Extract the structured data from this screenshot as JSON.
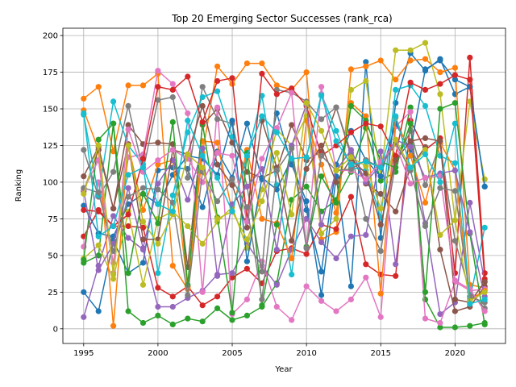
{
  "chart_data": {
    "type": "line",
    "title": "Top 20 Emerging Sector Successes (rank_rca)",
    "xlabel": "Year",
    "ylabel": "Ranking",
    "xlim": [
      1993.6,
      2023.4
    ],
    "ylim": [
      -10,
      205
    ],
    "xticks": [
      1995,
      2000,
      2005,
      2010,
      2015,
      2020
    ],
    "yticks": [
      0,
      25,
      50,
      75,
      100,
      125,
      150,
      175,
      200
    ],
    "grid": true,
    "legend": "none",
    "x": [
      1995,
      1996,
      1997,
      1998,
      1999,
      2000,
      2001,
      2002,
      2003,
      2004,
      2005,
      2006,
      2007,
      2008,
      2009,
      2010,
      2011,
      2012,
      2013,
      2014,
      2015,
      2016,
      2017,
      2018,
      2019,
      2020,
      2021,
      2022
    ],
    "series": [
      {
        "color": "#1f77b4",
        "values": [
          25,
          12,
          60,
          38,
          45,
          108,
          110,
          109,
          83,
          121,
          103,
          140,
          102,
          147,
          112,
          87,
          23,
          104,
          29,
          182,
          62,
          154,
          188,
          176,
          184,
          160,
          165,
          97
        ]
      },
      {
        "color": "#ff7f0e",
        "values": [
          157,
          165,
          121,
          166,
          166,
          174,
          43,
          27,
          120,
          179,
          167,
          181,
          181,
          166,
          163,
          175,
          61,
          66,
          177,
          179,
          183,
          170,
          183,
          184,
          175,
          178,
          30,
          28
        ]
      },
      {
        "color": "#2ca02c",
        "values": [
          45,
          50,
          140,
          12,
          4,
          9,
          3,
          7,
          5,
          14,
          6,
          9,
          15,
          31,
          88,
          97,
          80,
          88,
          107,
          137,
          101,
          107,
          151,
          20,
          1,
          1,
          2,
          4
        ]
      },
      {
        "color": "#d62728",
        "values": [
          63,
          81,
          70,
          70,
          69,
          28,
          22,
          29,
          16,
          22,
          35,
          41,
          31,
          53,
          55,
          51,
          71,
          68,
          90,
          44,
          37,
          36,
          142,
          122,
          130,
          38,
          185,
          38
        ]
      },
      {
        "color": "#9467bd",
        "values": [
          8,
          43,
          77,
          62,
          54,
          15,
          15,
          21,
          26,
          37,
          38,
          58,
          43,
          30,
          54,
          75,
          59,
          48,
          63,
          64,
          121,
          44,
          126,
          72,
          10,
          18,
          86,
          32
        ]
      },
      {
        "color": "#8c564b",
        "values": [
          104,
          124,
          82,
          139,
          126,
          127,
          126,
          42,
          139,
          150,
          127,
          107,
          103,
          108,
          139,
          115,
          121,
          151,
          118,
          99,
          92,
          80,
          110,
          124,
          54,
          12,
          15,
          29
        ]
      },
      {
        "color": "#e377c2",
        "values": [
          56,
          100,
          45,
          117,
          119,
          176,
          167,
          147,
          25,
          151,
          10,
          20,
          46,
          15,
          6,
          29,
          19,
          12,
          20,
          35,
          8,
          138,
          148,
          7,
          4,
          32,
          26,
          27
        ]
      },
      {
        "color": "#7f7f7f",
        "values": [
          122,
          90,
          107,
          152,
          108,
          156,
          158,
          103,
          165,
          143,
          140,
          97,
          39,
          163,
          161,
          155,
          143,
          151,
          120,
          75,
          53,
          113,
          135,
          98,
          126,
          60,
          25,
          14
        ]
      },
      {
        "color": "#bcbd22",
        "values": [
          48,
          57,
          34,
          80,
          30,
          75,
          80,
          70,
          58,
          73,
          83,
          55,
          95,
          136,
          125,
          145,
          65,
          75,
          163,
          169,
          104,
          190,
          190,
          195,
          160,
          74,
          155,
          102
        ]
      },
      {
        "color": "#17becf",
        "values": [
          146,
          91,
          155,
          125,
          112,
          38,
          91,
          134,
          158,
          162,
          131,
          117,
          159,
          98,
          37,
          117,
          160,
          135,
          110,
          108,
          76,
          163,
          166,
          152,
          118,
          113,
          20,
          69
        ]
      },
      {
        "color": "#1f77b4",
        "values": [
          84,
          65,
          63,
          85,
          92,
          85,
          105,
          118,
          116,
          105,
          142,
          46,
          103,
          95,
          116,
          81,
          39,
          112,
          135,
          115,
          104,
          140,
          122,
          177,
          183,
          170,
          165,
          97
        ]
      },
      {
        "color": "#ff7f0e",
        "values": [
          149,
          122,
          2,
          125,
          81,
          112,
          115,
          28,
          128,
          127,
          80,
          122,
          75,
          72,
          48,
          142,
          112,
          79,
          154,
          145,
          24,
          144,
          118,
          86,
          127,
          108,
          20,
          26
        ]
      },
      {
        "color": "#2ca02c",
        "values": [
          47,
          129,
          140,
          38,
          92,
          72,
          141,
          30,
          140,
          76,
          11,
          120,
          16,
          71,
          125,
          56,
          104,
          86,
          152,
          142,
          114,
          110,
          140,
          25,
          150,
          154,
          65,
          3
        ]
      },
      {
        "color": "#d62728",
        "values": [
          81,
          80,
          70,
          78,
          116,
          165,
          163,
          172,
          141,
          169,
          171,
          74,
          174,
          160,
          164,
          152,
          118,
          125,
          134,
          140,
          138,
          118,
          168,
          163,
          167,
          173,
          170,
          34
        ]
      },
      {
        "color": "#9467bd",
        "values": [
          94,
          40,
          58,
          96,
          55,
          99,
          115,
          88,
          123,
          36,
          85,
          97,
          109,
          54,
          125,
          153,
          71,
          108,
          122,
          100,
          112,
          129,
          124,
          103,
          106,
          108,
          66,
          22
        ]
      },
      {
        "color": "#8c564b",
        "values": [
          94,
          122,
          82,
          126,
          61,
          61,
          122,
          119,
          152,
          112,
          98,
          69,
          142,
          110,
          60,
          109,
          125,
          100,
          116,
          106,
          71,
          115,
          128,
          130,
          128,
          20,
          18,
          32
        ]
      },
      {
        "color": "#e377c2",
        "values": [
          95,
          115,
          38,
          136,
          107,
          115,
          122,
          116,
          100,
          120,
          118,
          73,
          116,
          137,
          161,
          55,
          165,
          108,
          108,
          102,
          114,
          126,
          99,
          103,
          104,
          33,
          27,
          12
        ]
      },
      {
        "color": "#7f7f7f",
        "values": [
          96,
          93,
          53,
          90,
          96,
          95,
          86,
          23,
          107,
          87,
          102,
          83,
          20,
          108,
          123,
          55,
          118,
          108,
          109,
          115,
          110,
          127,
          108,
          70,
          96,
          94,
          22,
          18
        ]
      },
      {
        "color": "#bcbd22",
        "values": [
          92,
          125,
          37,
          125,
          73,
          58,
          78,
          119,
          110,
          75,
          80,
          61,
          87,
          120,
          78,
          154,
          135,
          108,
          117,
          111,
          82,
          129,
          110,
          122,
          64,
          74,
          19,
          25
        ]
      },
      {
        "color": "#17becf",
        "values": [
          147,
          63,
          70,
          105,
          110,
          85,
          80,
          142,
          118,
          103,
          80,
          118,
          145,
          134,
          116,
          117,
          159,
          128,
          112,
          114,
          110,
          145,
          110,
          119,
          100,
          140,
          17,
          20
        ]
      }
    ]
  }
}
